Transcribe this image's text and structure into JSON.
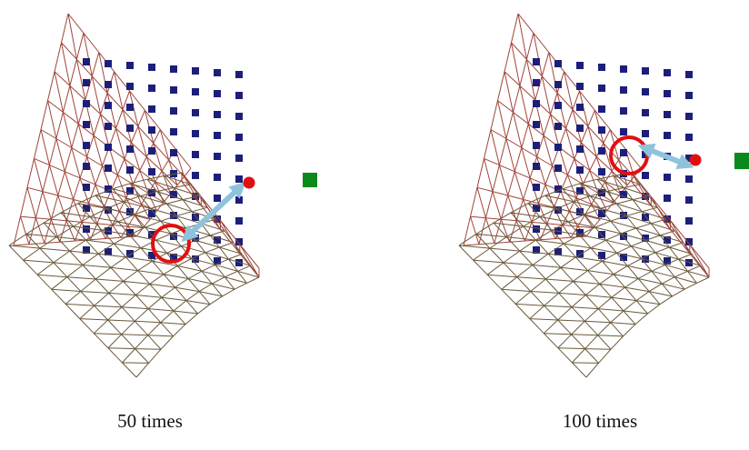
{
  "panels": [
    {
      "caption": "50 times"
    },
    {
      "caption": "100 times"
    }
  ]
}
